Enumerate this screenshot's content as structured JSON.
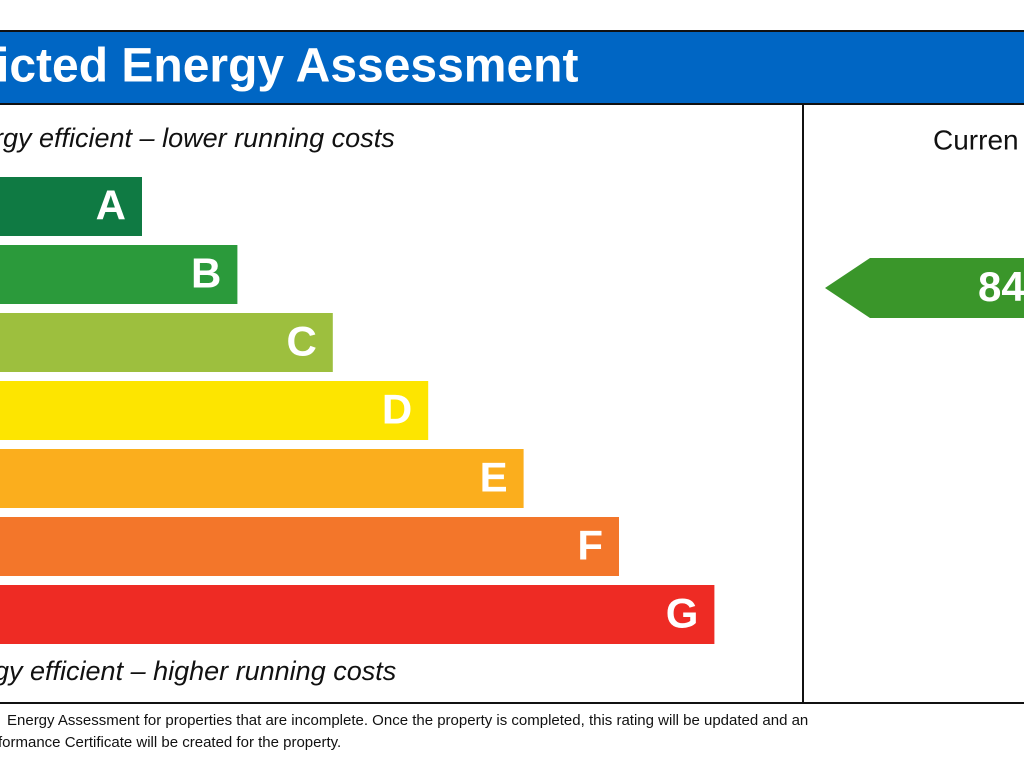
{
  "header": {
    "title": "icted Energy Assessment"
  },
  "scale": {
    "top_note": "rgy efficient – lower running costs",
    "bottom_note": "gy efficient – higher running costs",
    "bands": [
      {
        "letter": "A",
        "color": "#0f7a43"
      },
      {
        "letter": "B",
        "color": "#2b9a3b"
      },
      {
        "letter": "C",
        "color": "#9dbf3e"
      },
      {
        "letter": "D",
        "color": "#fde500"
      },
      {
        "letter": "E",
        "color": "#fbae1d"
      },
      {
        "letter": "F",
        "color": "#f3762a"
      },
      {
        "letter": "G",
        "color": "#ee2b24"
      }
    ]
  },
  "current": {
    "heading": "Curren",
    "rating": "84",
    "color": "#3a962a"
  },
  "footnote": [
    "Energy Assessment for properties that are incomplete. Once the property is completed, this rating will be updated and an",
    "formance Certificate will be created for the property."
  ]
}
